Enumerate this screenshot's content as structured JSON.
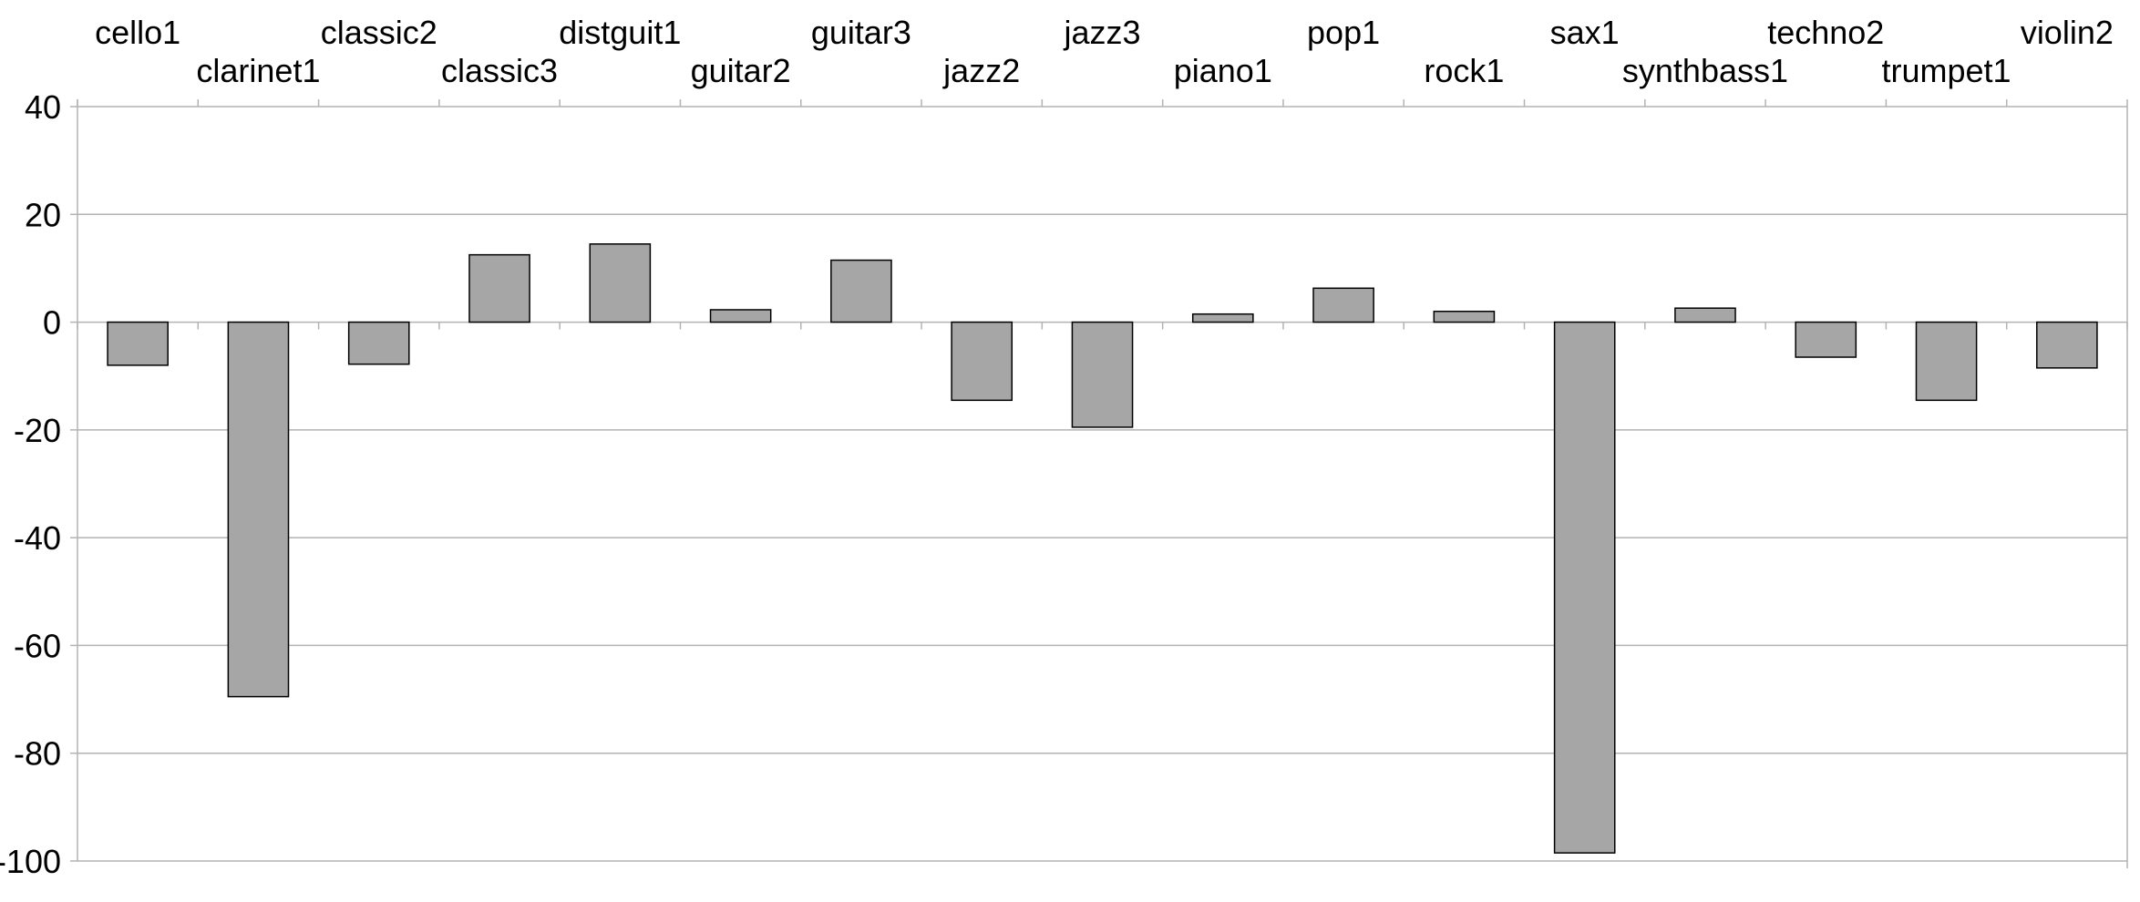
{
  "chart_data": {
    "type": "bar",
    "categories": [
      "cello1",
      "clarinet1",
      "classic2",
      "classic3",
      "distguit1",
      "guitar2",
      "guitar3",
      "jazz2",
      "jazz3",
      "piano1",
      "pop1",
      "rock1",
      "sax1",
      "synthbass1",
      "techno2",
      "trumpet1",
      "violin2"
    ],
    "values": [
      -8,
      -69.5,
      -7.8,
      12.5,
      14.5,
      2.3,
      11.5,
      -14.5,
      -19.5,
      1.5,
      6.3,
      2,
      -98.5,
      2.6,
      -6.5,
      -14.5,
      -8.5
    ],
    "title": "",
    "xlabel": "",
    "ylabel": "",
    "ylim": [
      -100,
      40
    ],
    "yticks": [
      "40",
      "20",
      "0",
      "-20",
      "-40",
      "-60",
      "-80",
      "-100"
    ],
    "x_axis_position": "top",
    "grid": true,
    "colors": {
      "bar_fill": "#a6a6a6",
      "bar_stroke": "#000000",
      "grid": "#b3b3b3",
      "axis": "#b3b3b3"
    }
  }
}
